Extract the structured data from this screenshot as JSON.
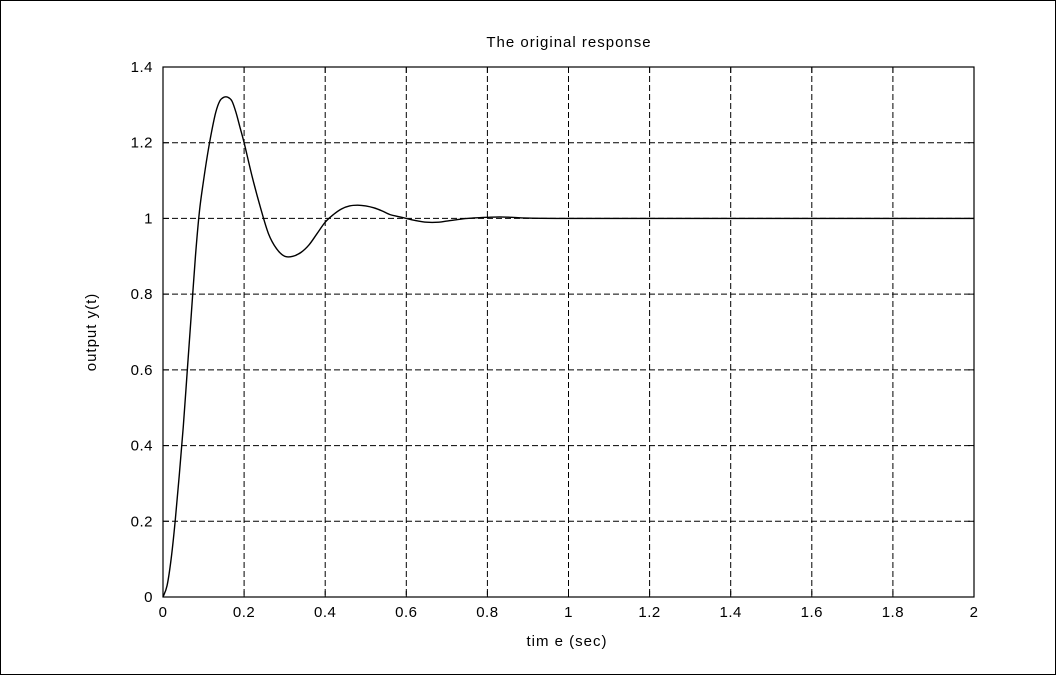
{
  "chart_data": {
    "type": "line",
    "title": "The original response",
    "xlabel": "tim e (sec)",
    "ylabel": "output y(t)",
    "xlim": [
      0,
      2
    ],
    "ylim": [
      0,
      1.4
    ],
    "grid": true,
    "xticks": [
      0,
      0.2,
      0.4,
      0.6,
      0.8,
      1,
      1.2,
      1.4,
      1.6,
      1.8,
      2
    ],
    "xtick_labels": [
      "0",
      "0.2",
      "0.4",
      "0.6",
      "0.8",
      "1",
      "1.2",
      "1.4",
      "1.6",
      "1.8",
      "2"
    ],
    "yticks": [
      0,
      0.2,
      0.4,
      0.6,
      0.8,
      1,
      1.2,
      1.4
    ],
    "ytick_labels": [
      "0",
      "0.2",
      "0.4",
      "0.6",
      "0.8",
      "1",
      "1.2",
      "1.4"
    ],
    "series": [
      {
        "x": [
          0,
          0.01,
          0.02,
          0.03,
          0.04,
          0.05,
          0.06,
          0.07,
          0.08,
          0.09,
          0.1,
          0.11,
          0.12,
          0.13,
          0.14,
          0.15,
          0.16,
          0.17,
          0.18,
          0.19,
          0.2,
          0.22,
          0.24,
          0.26,
          0.28,
          0.3,
          0.32,
          0.34,
          0.36,
          0.38,
          0.4,
          0.42,
          0.44,
          0.46,
          0.48,
          0.5,
          0.52,
          0.54,
          0.56,
          0.58,
          0.6,
          0.62,
          0.65,
          0.68,
          0.7,
          0.72,
          0.75,
          0.78,
          0.8,
          0.83,
          0.86,
          0.9,
          1.0,
          1.2,
          1.4,
          1.6,
          1.8,
          2.0
        ],
        "values": [
          0,
          0.03,
          0.1,
          0.2,
          0.32,
          0.45,
          0.6,
          0.75,
          0.9,
          1.02,
          1.1,
          1.17,
          1.23,
          1.28,
          1.31,
          1.32,
          1.32,
          1.31,
          1.28,
          1.24,
          1.2,
          1.11,
          1.03,
          0.96,
          0.92,
          0.9,
          0.9,
          0.91,
          0.93,
          0.96,
          0.99,
          1.01,
          1.025,
          1.033,
          1.035,
          1.033,
          1.028,
          1.02,
          1.01,
          1.005,
          1.0,
          0.995,
          0.99,
          0.99,
          0.993,
          0.996,
          1.0,
          1.002,
          1.003,
          1.004,
          1.003,
          1.001,
          1.0,
          1.0,
          1.0,
          1.0,
          1.0,
          1.0
        ]
      }
    ]
  }
}
